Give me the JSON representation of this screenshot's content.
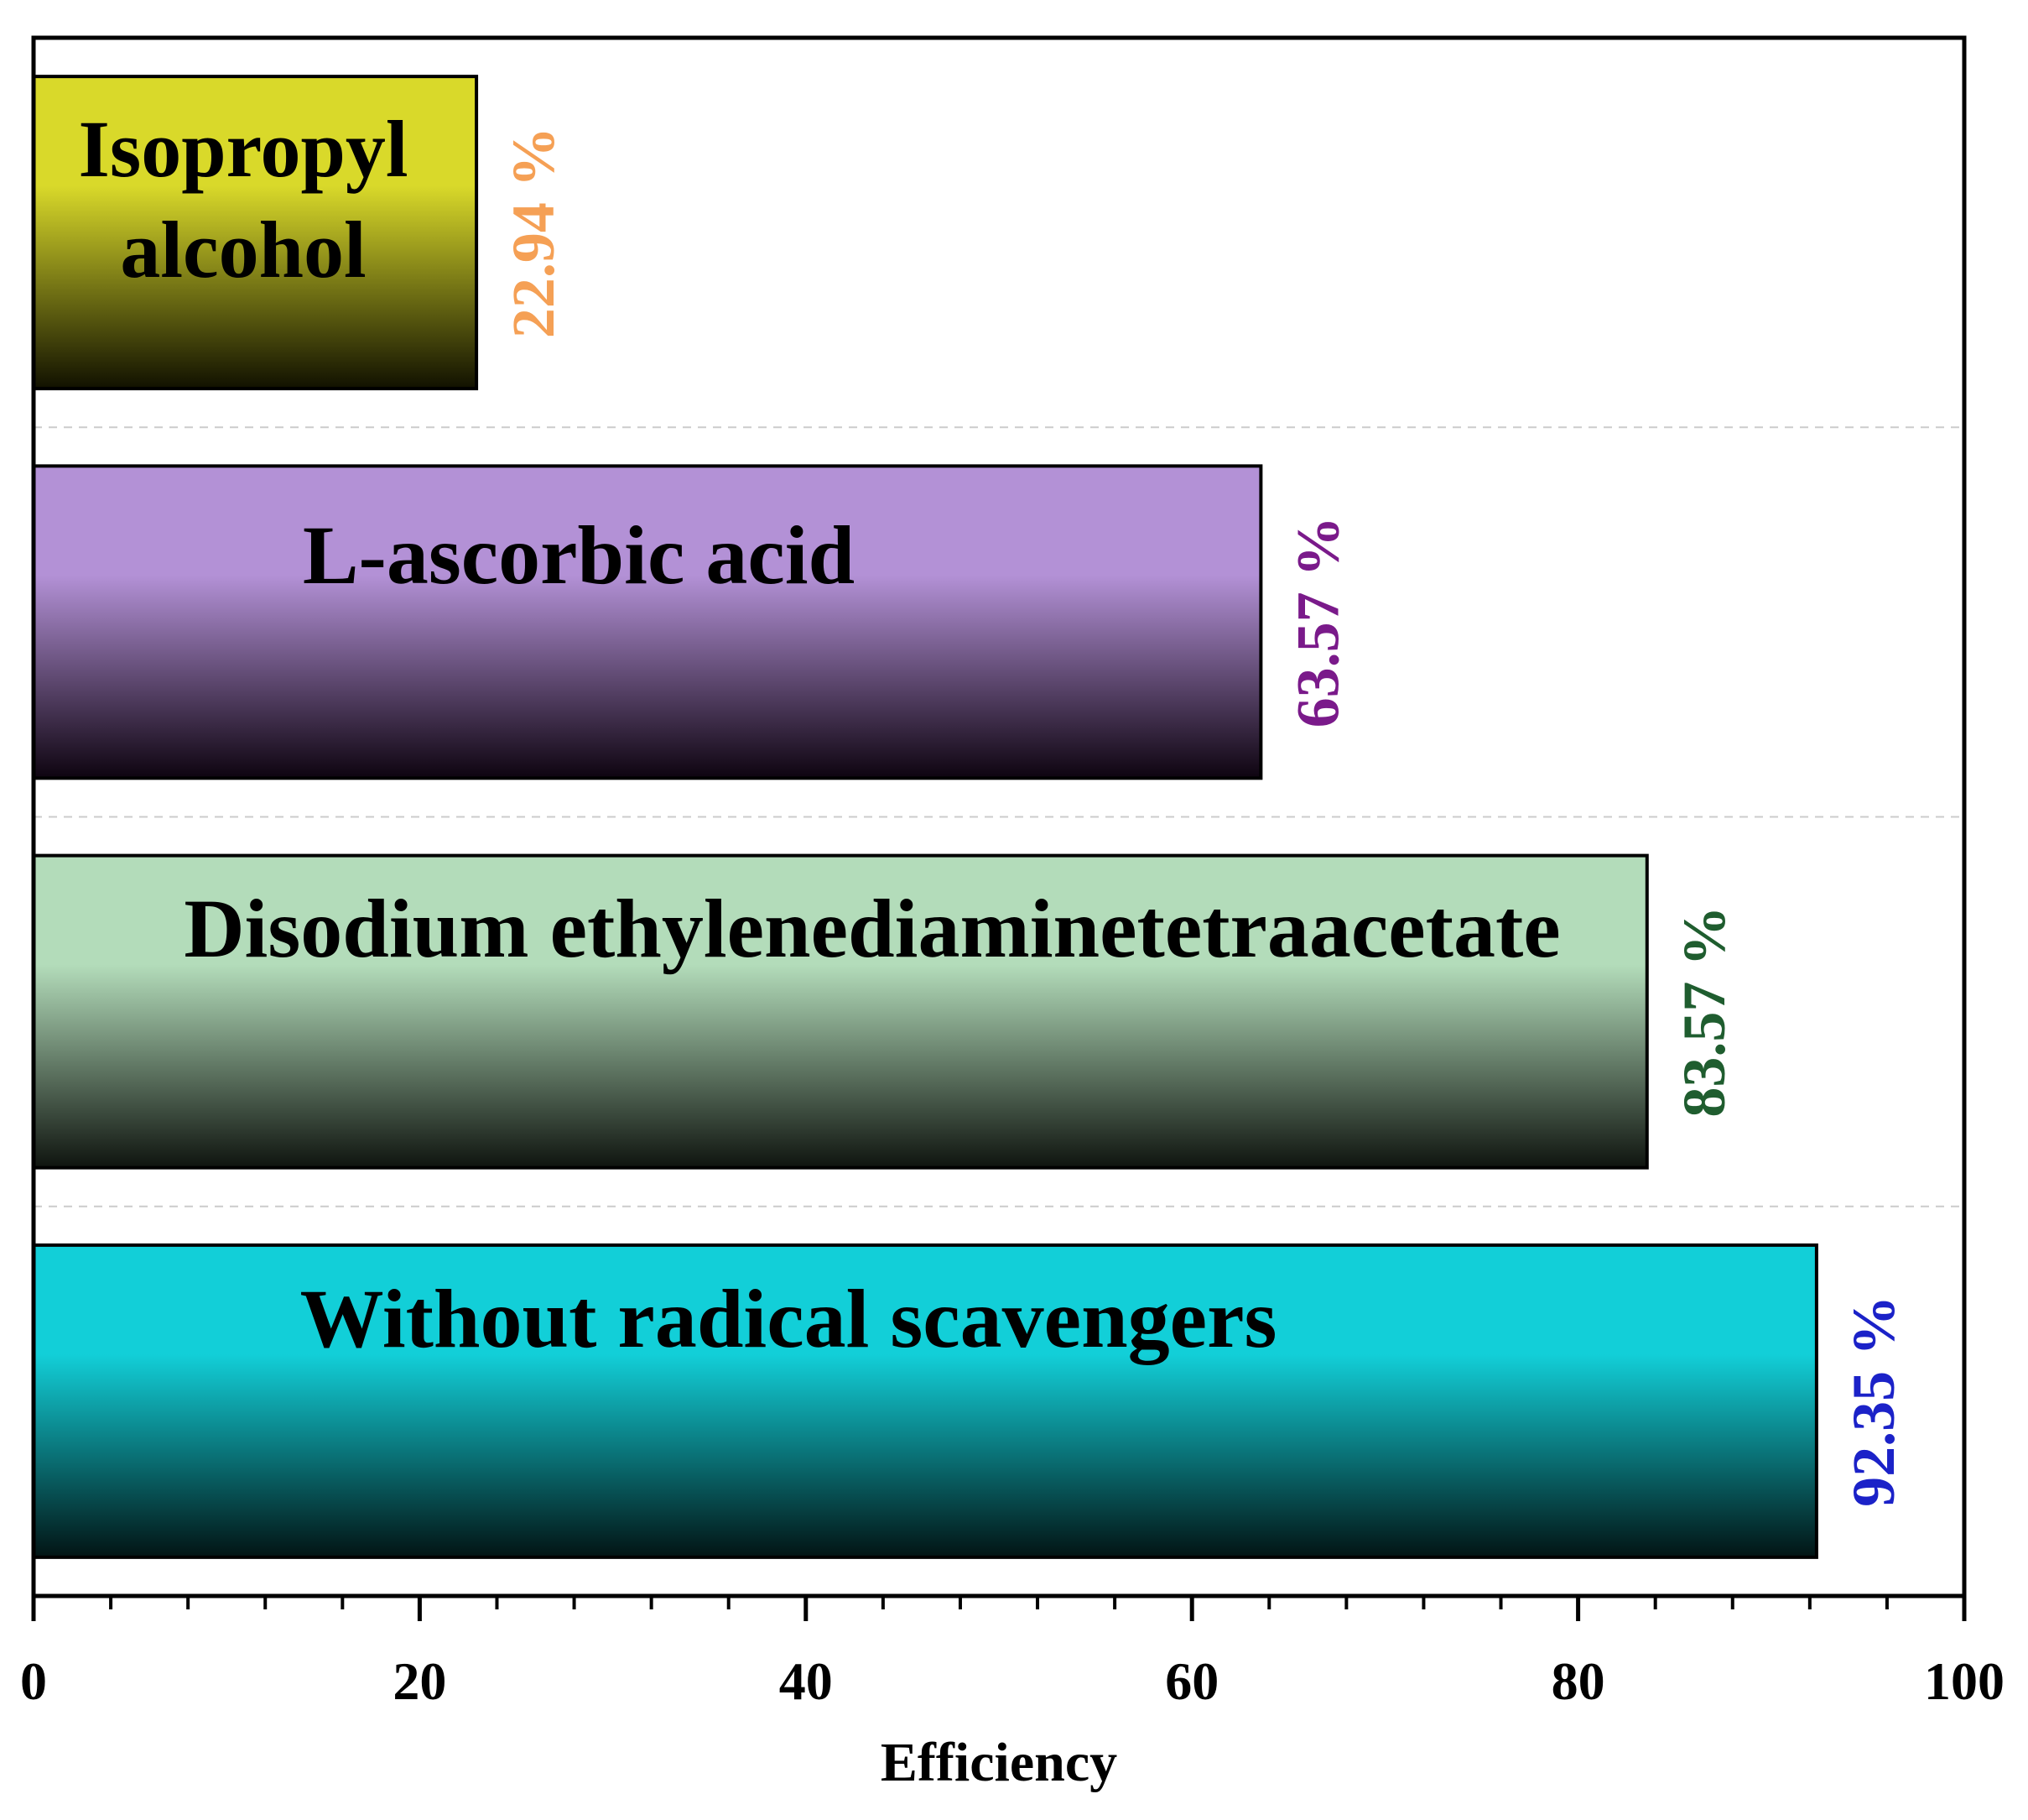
{
  "chart_data": {
    "type": "bar",
    "orientation": "horizontal",
    "xlabel": "Efficiency",
    "xlim": [
      0,
      100
    ],
    "xticks": [
      "0",
      "20",
      "40",
      "60",
      "80",
      "100"
    ],
    "grid": "horizontal dashed separators between bars",
    "bars": [
      {
        "label_lines": [
          "Isopropyl",
          "alcohol"
        ],
        "value": 22.94,
        "value_label": "22.94 %",
        "value_color": "#f5a055",
        "color_top": "#d9d92a",
        "color_bottom": "#111100"
      },
      {
        "label_lines": [
          "L-ascorbic acid"
        ],
        "value": 63.57,
        "value_label": "63.57 %",
        "value_color": "#7a1a8a",
        "color_top": "#b391d6",
        "color_bottom": "#0e0410"
      },
      {
        "label_lines": [
          "Disodium ethylenediaminetetraacetate"
        ],
        "value": 83.57,
        "value_label": "83.57 %",
        "value_color": "#1f5d2f",
        "color_top": "#b3dcba",
        "color_bottom": "#0f140f"
      },
      {
        "label_lines": [
          "Without radical scavengers"
        ],
        "value": 92.35,
        "value_label": "92.35 %",
        "value_color": "#1b22c8",
        "color_top": "#12cfd8",
        "color_bottom": "#021414"
      }
    ]
  }
}
